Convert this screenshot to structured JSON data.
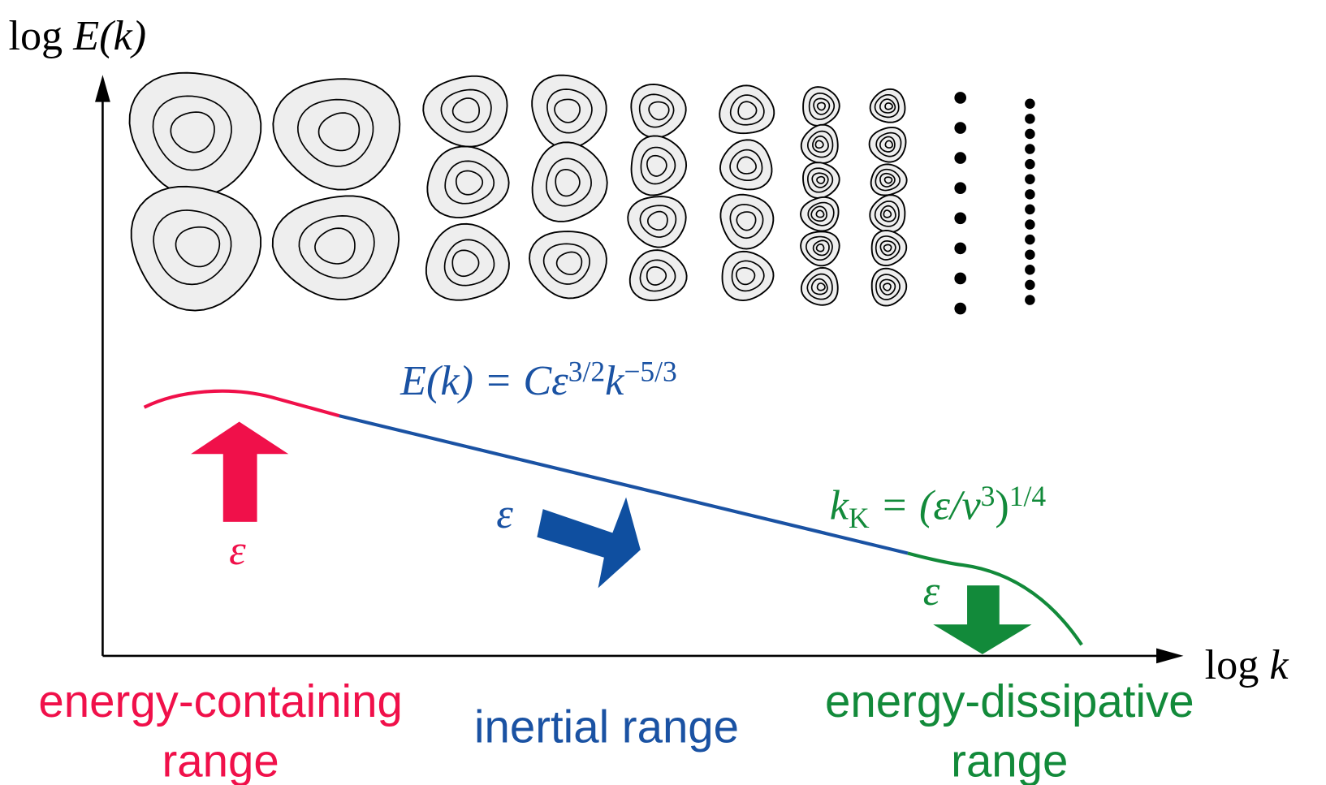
{
  "axes": {
    "y_label": {
      "base": "log ",
      "func": "E(k)"
    },
    "x_label": {
      "base": "log ",
      "var": "k"
    }
  },
  "inertial_formula": {
    "base1": "E(k) = Cε",
    "exp1": "3/2",
    "base2": "k",
    "exp2": "−5/3"
  },
  "kolmogorov_formula": {
    "base1": "k",
    "sub1": "K",
    "base2": " = (ε/ν",
    "exp1": "3",
    "base3": ")",
    "exp2": "1/4"
  },
  "flux_labels": {
    "containing": "ε",
    "inertial": "ε",
    "dissipative": "ε"
  },
  "ranges": {
    "containing": [
      "energy-containing",
      "range"
    ],
    "inertial": "inertial range",
    "dissipative": [
      "energy-dissipative",
      "range"
    ]
  }
}
